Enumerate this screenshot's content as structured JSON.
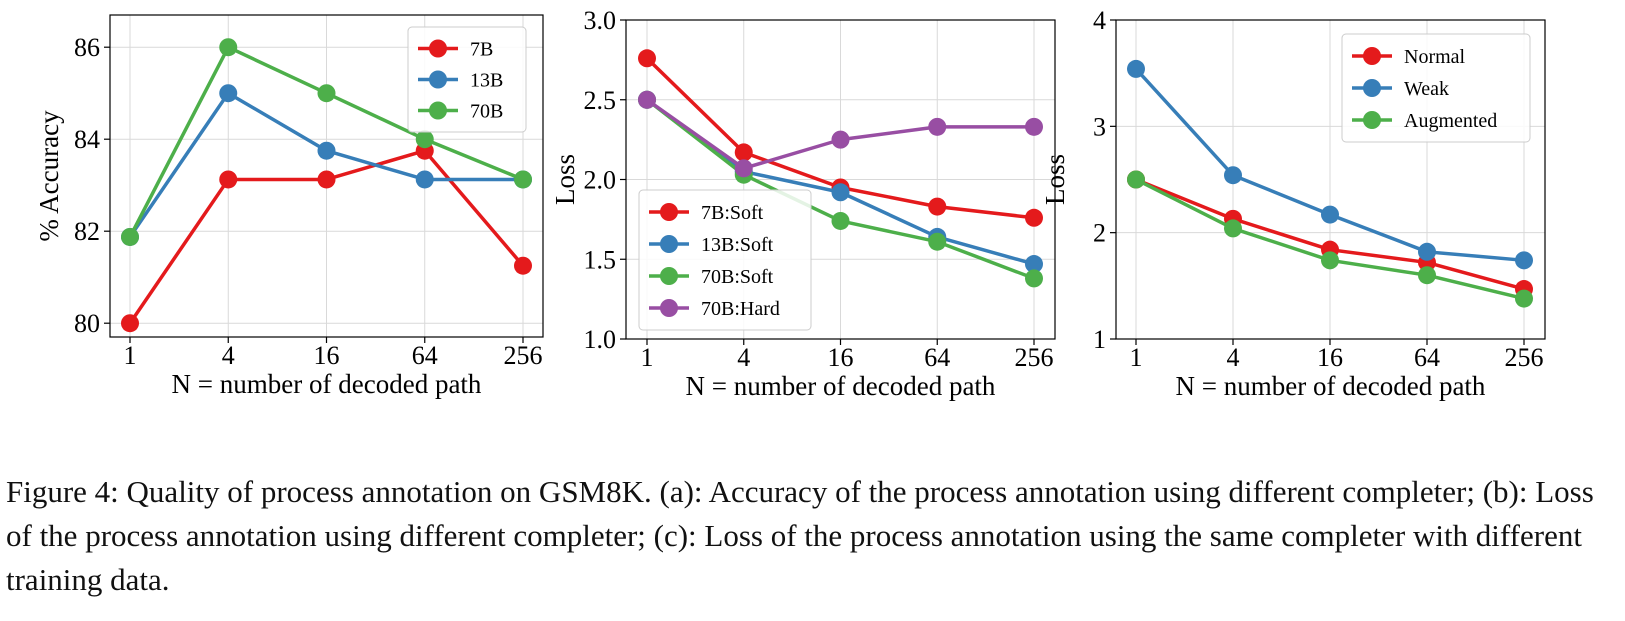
{
  "caption": "Figure 4: Quality of process annotation on GSM8K. (a): Accuracy of the process annotation using different completer; (b): Loss of the process annotation using different completer; (c): Loss of the process annotation using the same completer with different training data.",
  "colors": {
    "red": "#e41a1c",
    "blue": "#377eb8",
    "green": "#4daf4a",
    "purple": "#984ea3",
    "grid": "#d9d9d9"
  },
  "chart_data": [
    {
      "id": "a",
      "type": "line",
      "title": "",
      "xlabel": "N = number of decoded path",
      "ylabel": "% Accuracy",
      "categories": [
        "1",
        "4",
        "16",
        "64",
        "256"
      ],
      "yticks": [
        80,
        82,
        84,
        86
      ],
      "ytick_labels": [
        "80",
        "82",
        "84",
        "86"
      ],
      "ylim": [
        79.7,
        86.7
      ],
      "grid": true,
      "legend_position": "top-right",
      "series": [
        {
          "name": "7B",
          "color": "#e41a1c",
          "values": [
            80.0,
            83.125,
            83.125,
            83.75,
            81.25
          ]
        },
        {
          "name": "13B",
          "color": "#377eb8",
          "values": [
            81.875,
            85.0,
            83.75,
            83.125,
            83.125
          ]
        },
        {
          "name": "70B",
          "color": "#4daf4a",
          "values": [
            81.875,
            86.0,
            85.0,
            84.0,
            83.125
          ]
        }
      ]
    },
    {
      "id": "b",
      "type": "line",
      "title": "",
      "xlabel": "N = number of decoded path",
      "ylabel": "Loss",
      "categories": [
        "1",
        "4",
        "16",
        "64",
        "256"
      ],
      "yticks": [
        1.0,
        1.5,
        2.0,
        2.5,
        3.0
      ],
      "ytick_labels": [
        "1.0",
        "1.5",
        "2.0",
        "2.5",
        "3.0"
      ],
      "ylim": [
        1.0,
        3.0
      ],
      "grid": true,
      "legend_position": "bottom-left",
      "series": [
        {
          "name": "7B:Soft",
          "color": "#e41a1c",
          "values": [
            2.76,
            2.17,
            1.95,
            1.83,
            1.76
          ]
        },
        {
          "name": "13B:Soft",
          "color": "#377eb8",
          "values": [
            2.5,
            2.05,
            1.92,
            1.64,
            1.47
          ]
        },
        {
          "name": "70B:Soft",
          "color": "#4daf4a",
          "values": [
            2.5,
            2.03,
            1.74,
            1.61,
            1.38
          ]
        },
        {
          "name": "70B:Hard",
          "color": "#984ea3",
          "values": [
            2.5,
            2.07,
            2.25,
            2.33,
            2.33
          ]
        }
      ]
    },
    {
      "id": "c",
      "type": "line",
      "title": "",
      "xlabel": "N = number of decoded path",
      "ylabel": "Loss",
      "categories": [
        "1",
        "4",
        "16",
        "64",
        "256"
      ],
      "yticks": [
        1,
        2,
        3,
        4
      ],
      "ytick_labels": [
        "1",
        "2",
        "3",
        "4"
      ],
      "ylim": [
        1.0,
        4.0
      ],
      "grid": true,
      "legend_position": "top-right",
      "series": [
        {
          "name": "Normal",
          "color": "#e41a1c",
          "values": [
            2.5,
            2.13,
            1.84,
            1.72,
            1.47
          ]
        },
        {
          "name": "Weak",
          "color": "#377eb8",
          "values": [
            3.54,
            2.54,
            2.17,
            1.82,
            1.74
          ]
        },
        {
          "name": "Augmented",
          "color": "#4daf4a",
          "values": [
            2.5,
            2.04,
            1.74,
            1.6,
            1.38
          ]
        }
      ]
    }
  ]
}
